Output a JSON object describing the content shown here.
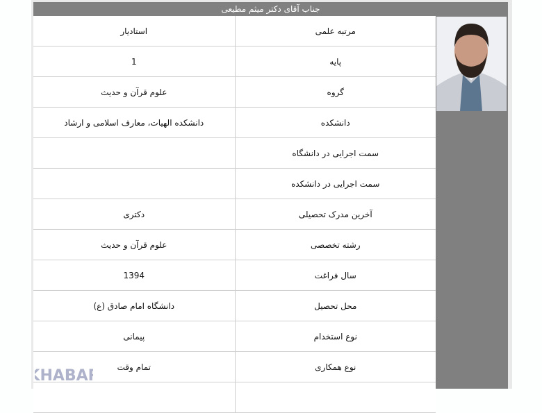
{
  "header": {
    "title": "جناب آقای دکتر میثم مطیعی"
  },
  "rows": [
    {
      "label": "مرتبه علمی",
      "value": "استادیار"
    },
    {
      "label": "پایه",
      "value": "1"
    },
    {
      "label": "گروه",
      "value": "علوم قرآن و حدیث"
    },
    {
      "label": "دانشکده",
      "value": "دانشکده الهیات، معارف اسلامی و ارشاد"
    },
    {
      "label": "سمت اجرایی در دانشگاه",
      "value": ""
    },
    {
      "label": "سمت اجرایی در دانشکده",
      "value": ""
    },
    {
      "label": "آخرین مدرک تحصیلی",
      "value": "دکتری"
    },
    {
      "label": "رشته تخصصی",
      "value": "علوم قرآن و حدیث"
    },
    {
      "label": "سال فراغت",
      "value": "1394"
    },
    {
      "label": "محل تحصیل",
      "value": "دانشگاه امام صادق (ع)"
    },
    {
      "label": "نوع استخدام",
      "value": "پیمانی"
    },
    {
      "label": "نوع همکاری",
      "value": "تمام وقت"
    },
    {
      "label": "",
      "value": ""
    }
  ],
  "watermark": {
    "text": "خبرآنلاین"
  },
  "colors": {
    "header_bg": "#808080",
    "border": "#cfcfcf"
  }
}
